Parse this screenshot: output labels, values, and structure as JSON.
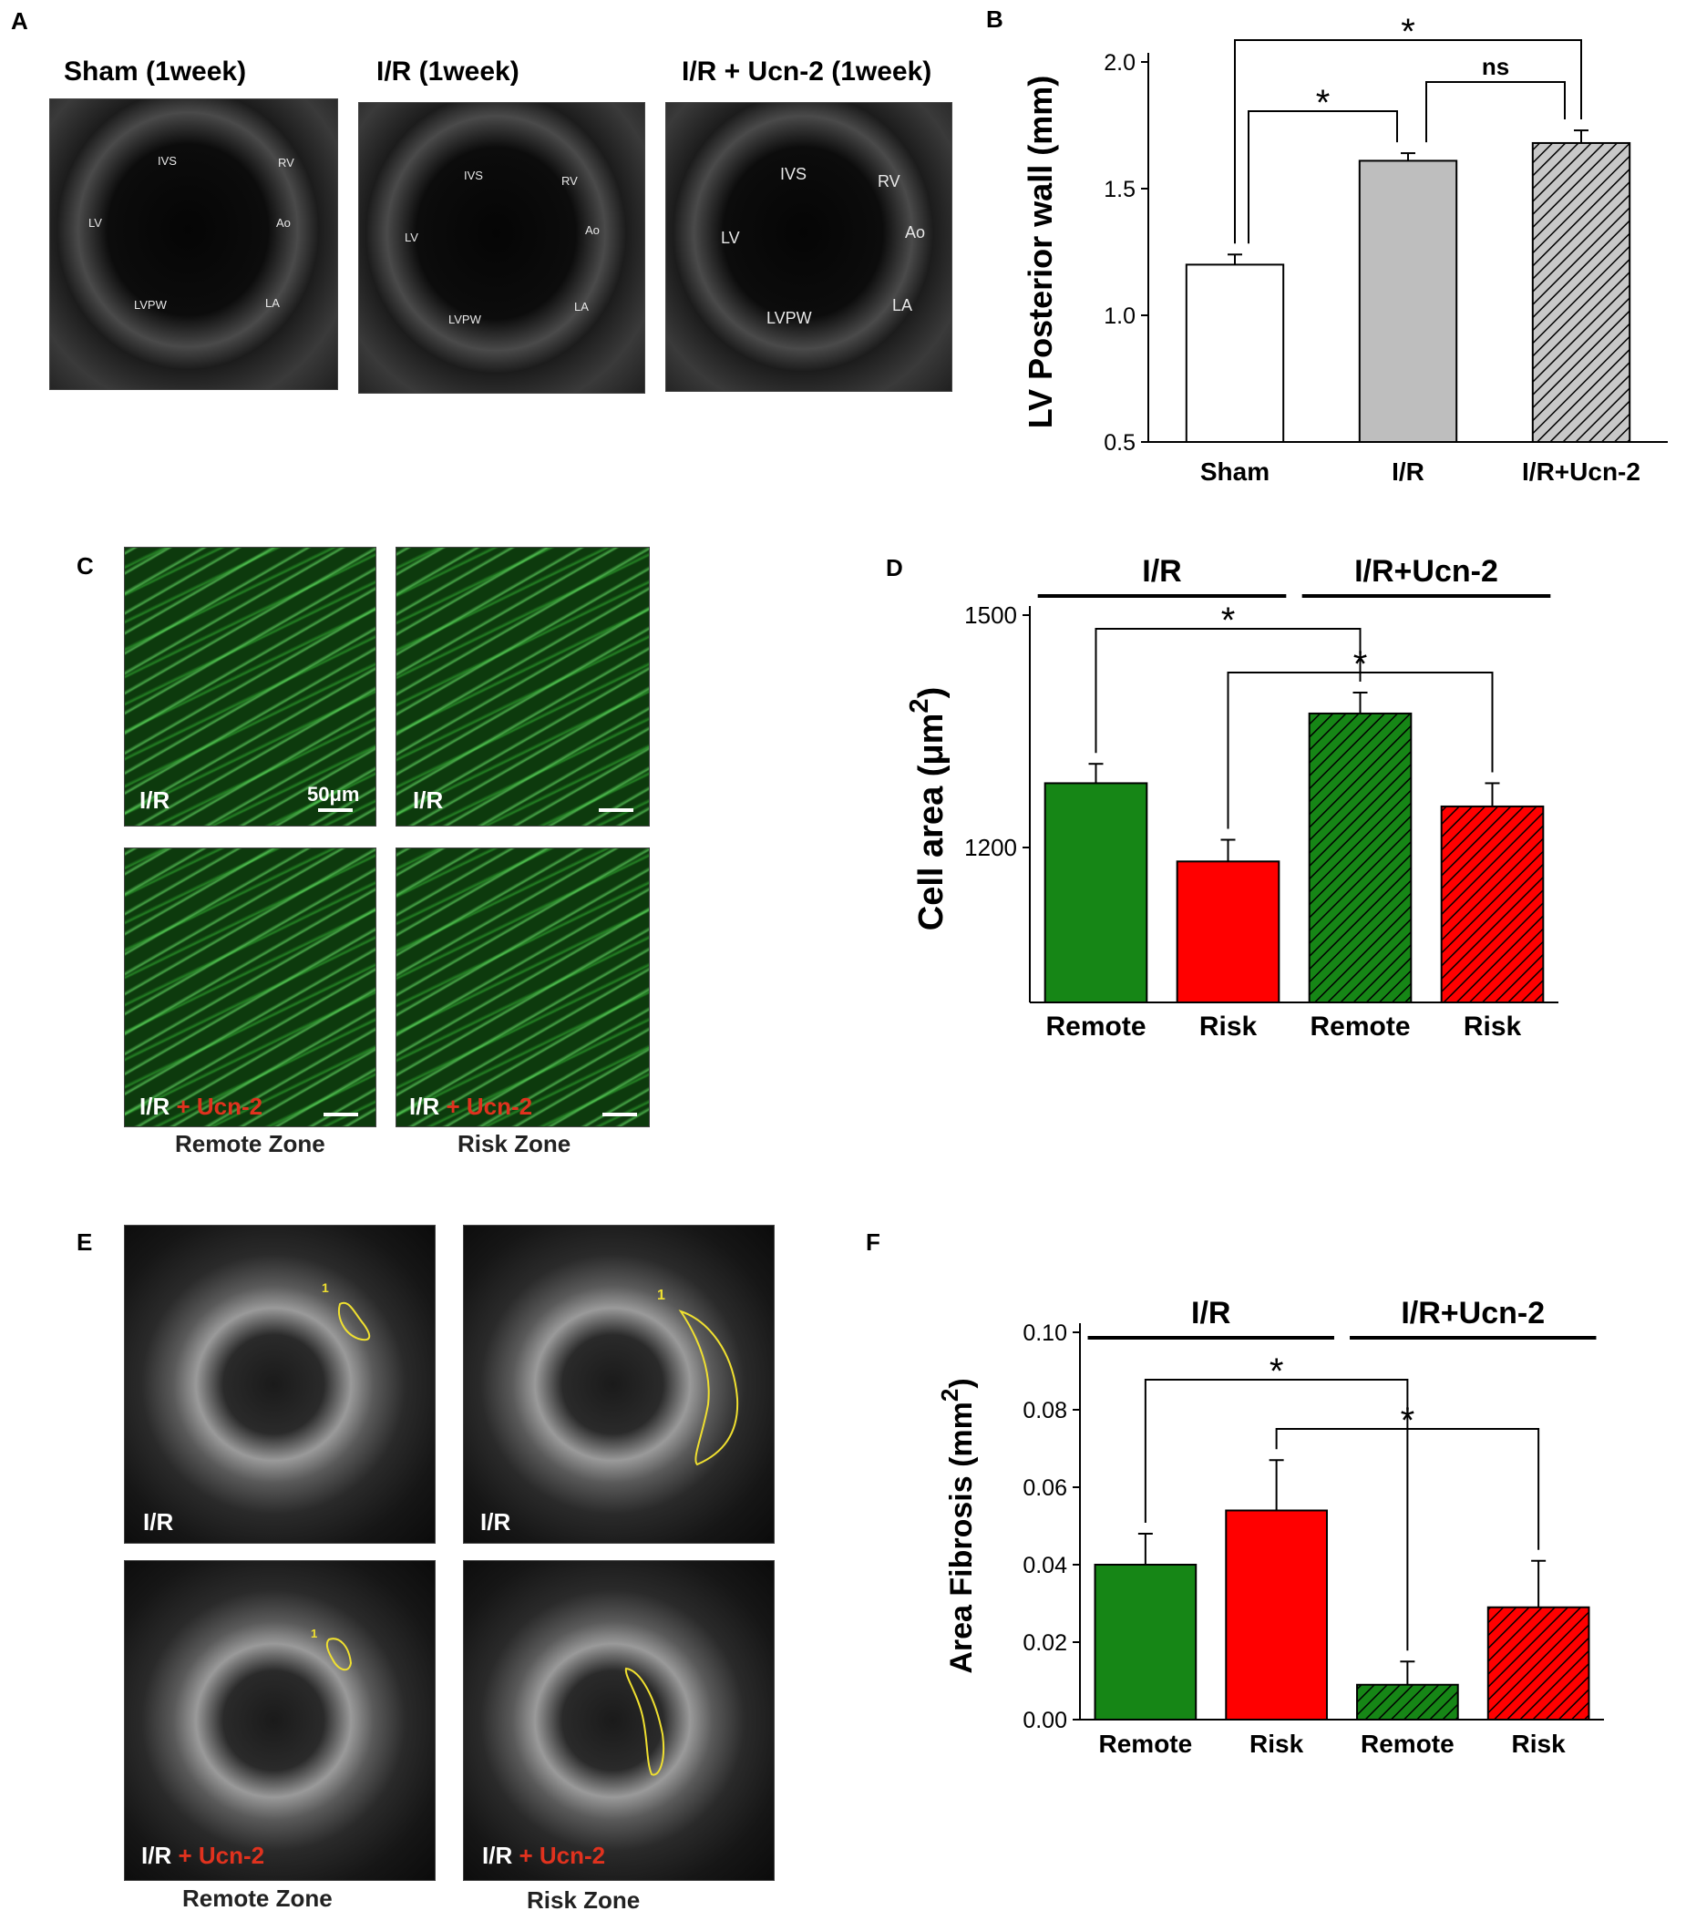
{
  "panel_labels": {
    "a": "A",
    "b": "B",
    "c": "C",
    "d": "D",
    "e": "E",
    "f": "F"
  },
  "panel_a": {
    "titles": [
      "Sham (1week)",
      "I/R (1week)",
      "I/R + Ucn-2 (1week)"
    ],
    "echo_labels": [
      "IVS",
      "RV",
      "LV",
      "Ao",
      "LVPW",
      "LA"
    ]
  },
  "panel_c": {
    "overlays": [
      "I/R",
      "I/R",
      "I/R",
      "I/R"
    ],
    "overlay_suffix": "+ Ucn-2",
    "scale_bar": "50μm",
    "zones": [
      "Remote Zone",
      "Risk Zone"
    ]
  },
  "panel_e": {
    "overlays": [
      "I/R",
      "I/R",
      "I/R",
      "I/R"
    ],
    "overlay_suffix": "+ Ucn-2",
    "roi_label": "1",
    "zones": [
      "Remote Zone",
      "Risk Zone"
    ]
  },
  "colors": {
    "green": "#168616",
    "red": "#ff0000",
    "gray": "#bebebe",
    "white": "#ffffff",
    "ink": "#000000",
    "hatch_gray": "#c8c8c8"
  },
  "chart_data": [
    {
      "id": "B",
      "type": "bar",
      "categories": [
        "Sham",
        "I/R",
        "I/R+Ucn-2"
      ],
      "values": [
        1.2,
        1.61,
        1.68
      ],
      "errors": [
        0.04,
        0.03,
        0.05
      ],
      "fills": [
        "white",
        "gray",
        "hatch-gray"
      ],
      "ylabel": "LV Posterior wall (mm)",
      "ylim": [
        0.5,
        2.0
      ],
      "yticks": [
        "0.5",
        "1.0",
        "1.5",
        "2.0"
      ],
      "significance": [
        {
          "from": 0,
          "to": 1,
          "label": "*"
        },
        {
          "from": 1,
          "to": 2,
          "label": "ns"
        },
        {
          "from": 0,
          "to": 2,
          "label": "*"
        }
      ]
    },
    {
      "id": "D",
      "type": "bar",
      "categories": [
        "Remote",
        "Risk",
        "Remote",
        "Risk"
      ],
      "values": [
        1283,
        1182,
        1373,
        1253
      ],
      "errors": [
        25,
        28,
        27,
        30
      ],
      "fills": [
        "green",
        "red",
        "hatch-green",
        "hatch-red"
      ],
      "ylabel": "Cell area (μm",
      "ylabel_sup": "2",
      "ylabel_close": ")",
      "ylim": [
        1000,
        1500
      ],
      "yticks": [
        "1200",
        "1500"
      ],
      "groups": [
        {
          "label": "I/R",
          "from": 0,
          "to": 1
        },
        {
          "label": "I/R+Ucn-2",
          "from": 2,
          "to": 3
        }
      ],
      "significance": [
        {
          "from": 0,
          "to": 2,
          "label": "*"
        },
        {
          "from": 1,
          "to": 3,
          "label": "*"
        }
      ]
    },
    {
      "id": "F",
      "type": "bar",
      "categories": [
        "Remote",
        "Risk",
        "Remote",
        "Risk"
      ],
      "values": [
        0.04,
        0.054,
        0.009,
        0.029
      ],
      "errors": [
        0.008,
        0.013,
        0.006,
        0.012
      ],
      "fills": [
        "green",
        "red",
        "hatch-green",
        "hatch-red"
      ],
      "ylabel": "Area Fibrosis (mm",
      "ylabel_sup": "2",
      "ylabel_close": ")",
      "ylim": [
        0.0,
        0.1
      ],
      "yticks": [
        "0.00",
        "0.02",
        "0.04",
        "0.06",
        "0.08",
        "0.10"
      ],
      "groups": [
        {
          "label": "I/R",
          "from": 0,
          "to": 1
        },
        {
          "label": "I/R+Ucn-2",
          "from": 2,
          "to": 3
        }
      ],
      "significance": [
        {
          "from": 0,
          "to": 2,
          "label": "*"
        },
        {
          "from": 1,
          "to": 3,
          "label": "*"
        }
      ]
    }
  ]
}
